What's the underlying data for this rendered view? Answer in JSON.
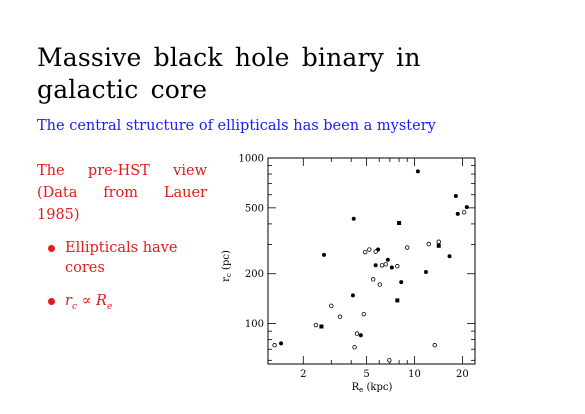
{
  "slide": {
    "title": "Massive black hole binary in galactic core",
    "subtitle": "The central structure of ellipticals has been a mystery",
    "intro_text": "The pre-HST view (Data from Lauer 1985)",
    "bullets": [
      {
        "text": "Ellipticals have cores"
      },
      {
        "text_main": "r",
        "text_sub": "c",
        "relation": " ∝ ",
        "text_main2": "R",
        "text_sub2": "e"
      }
    ],
    "colors": {
      "title": "#000000",
      "subtitle": "#1a1aff",
      "body": "#e31b1b"
    }
  },
  "chart_data": {
    "type": "scatter",
    "xlabel": "R_e (kpc)",
    "ylabel": "r_c (pc)",
    "xscale": "log",
    "yscale": "log",
    "xlim": [
      1.2,
      24
    ],
    "ylim": [
      57,
      1000
    ],
    "x_ticks": [
      2,
      5,
      10,
      20
    ],
    "y_ticks": [
      100,
      200,
      500,
      1000
    ],
    "series": [
      {
        "marker": "filled-circle",
        "points": [
          [
            1.45,
            76
          ],
          [
            2.7,
            260
          ],
          [
            4.15,
            430
          ],
          [
            4.1,
            148
          ],
          [
            5.9,
            280
          ],
          [
            5.7,
            225
          ],
          [
            6.8,
            243
          ],
          [
            7.2,
            218
          ],
          [
            8.25,
            178
          ],
          [
            4.6,
            85
          ],
          [
            10.5,
            830
          ],
          [
            11.8,
            205
          ],
          [
            16.6,
            255
          ],
          [
            18.2,
            590
          ],
          [
            18.7,
            460
          ],
          [
            21.3,
            505
          ]
        ]
      },
      {
        "marker": "open-circle",
        "points": [
          [
            1.32,
            74
          ],
          [
            2.4,
            98
          ],
          [
            3.0,
            128
          ],
          [
            3.4,
            110
          ],
          [
            4.35,
            87
          ],
          [
            4.8,
            114
          ],
          [
            5.2,
            280
          ],
          [
            5.7,
            272
          ],
          [
            6.05,
            172
          ],
          [
            6.25,
            225
          ],
          [
            6.6,
            228
          ],
          [
            6.95,
            60
          ],
          [
            7.8,
            222
          ],
          [
            9.0,
            288
          ],
          [
            12.3,
            302
          ],
          [
            13.4,
            74
          ],
          [
            14.2,
            312
          ],
          [
            20.5,
            470
          ],
          [
            4.2,
            72
          ],
          [
            5.5,
            185
          ],
          [
            4.9,
            270
          ]
        ]
      },
      {
        "marker": "filled-square",
        "points": [
          [
            2.6,
            96
          ],
          [
            7.8,
            138
          ],
          [
            8.0,
            405
          ],
          [
            14.2,
            295
          ]
        ]
      }
    ]
  }
}
